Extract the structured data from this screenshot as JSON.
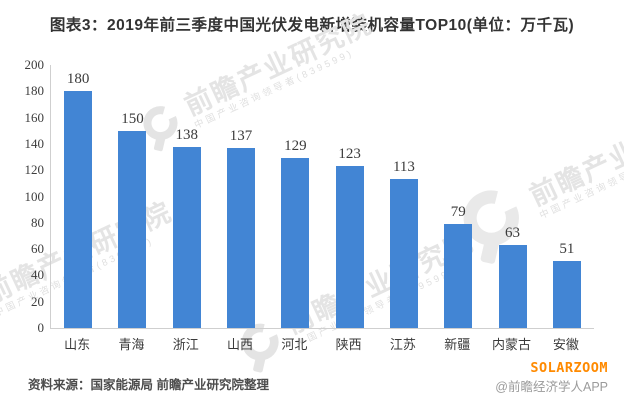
{
  "title": "图表3：2019年前三季度中国光伏发电新增装机容量TOP10(单位：万千瓦)",
  "chart_data": {
    "type": "bar",
    "title": "2019年前三季度中国光伏发电新增装机容量TOP10",
    "unit": "万千瓦",
    "categories": [
      "山东",
      "青海",
      "浙江",
      "山西",
      "河北",
      "陕西",
      "江苏",
      "新疆",
      "内蒙古",
      "安徽"
    ],
    "values": [
      180,
      150,
      138,
      137,
      129,
      123,
      113,
      79,
      63,
      51
    ],
    "xlabel": "",
    "ylabel": "",
    "ylim": [
      0,
      200
    ],
    "ytick_step": 20,
    "grid": false,
    "legend": "none",
    "value_labels": true,
    "bar_color": "#4285d4",
    "axis_line_color": "#cfcfcf"
  },
  "watermark": {
    "text": "前瞻产业研究院",
    "subtext": "中国产业咨询领导者(839599)",
    "icon": "magnifier-logo-icon",
    "color": "#e4e4e4"
  },
  "footer": {
    "source": "资料来源：国家能源局 前瞻产业研究院整理",
    "brand": "SOLARZOOM",
    "brand_color": "#ff8a00",
    "app": "@前瞻经济学人APP"
  }
}
